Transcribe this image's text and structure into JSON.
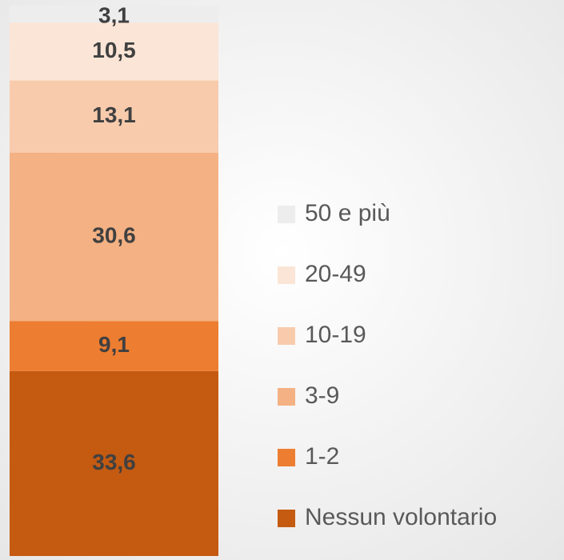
{
  "chart_data": {
    "type": "stacked_bar",
    "categories": [
      null
    ],
    "series": [
      {
        "name": "Nessun volontario",
        "color": "#c55a11",
        "values": [
          33.6
        ],
        "value_labels": [
          "33,6"
        ]
      },
      {
        "name": "1-2",
        "color": "#ed7d31",
        "values": [
          9.1
        ],
        "value_labels": [
          "9,1"
        ]
      },
      {
        "name": "3-9",
        "color": "#f4b183",
        "values": [
          30.6
        ],
        "value_labels": [
          "30,6"
        ]
      },
      {
        "name": "10-19",
        "color": "#f8cbad",
        "values": [
          13.1
        ],
        "value_labels": [
          "13,1"
        ]
      },
      {
        "name": "20-49",
        "color": "#fbe5d6",
        "values": [
          10.5
        ],
        "value_labels": [
          "10,5"
        ]
      },
      {
        "name": "50 e più",
        "color": "#ededed",
        "values": [
          3.1
        ],
        "value_labels": [
          "3,1"
        ]
      }
    ],
    "ylim": [
      0,
      100
    ],
    "legend": "right"
  }
}
